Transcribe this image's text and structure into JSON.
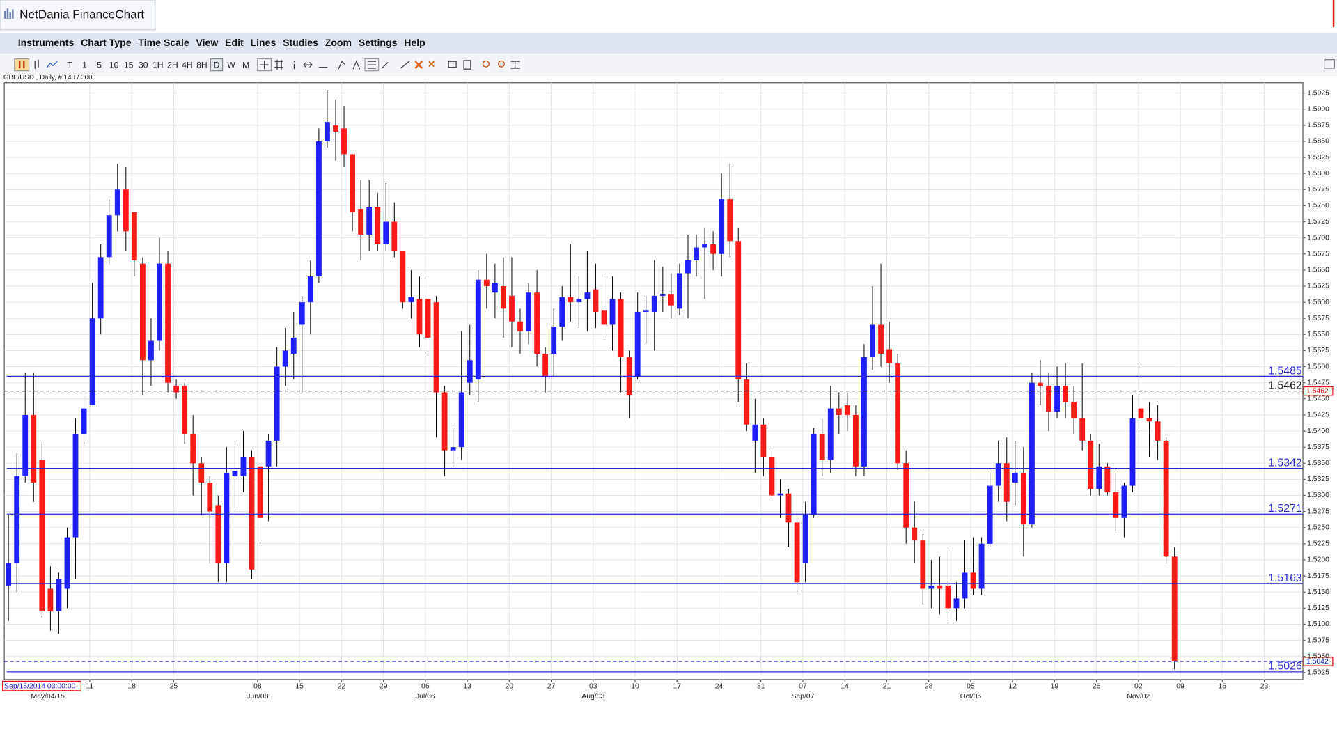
{
  "window_title": "NetDania FinanceChart",
  "menu": [
    "Instruments",
    "Chart Type",
    "Time Scale",
    "View",
    "Edit",
    "Lines",
    "Studies",
    "Zoom",
    "Settings",
    "Help"
  ],
  "toolbar": [
    "T",
    "1",
    "5",
    "10",
    "15",
    "30",
    "1H",
    "2H",
    "4H",
    "8H",
    "D",
    "W",
    "M"
  ],
  "chart_data": {
    "type": "candlestick",
    "title": "GBP/USD , Daily, # 140 / 300",
    "cursor_date": "Sep/15/2014 03:00:00",
    "up_color": "#1f1fff",
    "down_color": "#ff1a1a",
    "level_color": "#2727d8",
    "grid": true,
    "xlim": [
      -0.5,
      154.3
    ],
    "ylim": [
      1.5014,
      1.5941
    ],
    "open": [
      1.516,
      1.5195,
      1.533,
      1.5425,
      1.5355,
      1.5155,
      1.512,
      1.5155,
      1.5235,
      1.5395,
      1.544,
      1.5575,
      1.567,
      1.5735,
      1.5775,
      1.574,
      1.566,
      1.551,
      1.554,
      1.566,
      1.547,
      1.547,
      1.5395,
      1.535,
      1.532,
      1.5285,
      1.5195,
      1.533,
      1.533,
      1.536,
      1.5345,
      1.5345,
      1.5385,
      1.55,
      1.552,
      1.5565,
      1.56,
      1.564,
      1.585,
      1.5875,
      1.587,
      1.583,
      1.5745,
      1.5705,
      1.5748,
      1.569,
      1.5725,
      1.568,
      1.56,
      1.5605,
      1.5605,
      1.56,
      1.546,
      1.537,
      1.5375,
      1.5475,
      1.548,
      1.5635,
      1.5615,
      1.5625,
      1.561,
      1.557,
      1.5555,
      1.5615,
      1.552,
      1.552,
      1.5562,
      1.5608,
      1.56,
      1.5605,
      1.562,
      1.5588,
      1.5565,
      1.5605,
      1.5515,
      1.5485,
      1.5585,
      1.5585,
      1.561,
      1.5613,
      1.559,
      1.5645,
      1.5665,
      1.5685,
      1.569,
      1.5675,
      1.576,
      1.5695,
      1.548,
      1.5385,
      1.541,
      1.536,
      1.53,
      1.5303,
      1.5258,
      1.5195,
      1.527,
      1.5395,
      1.5355,
      1.5435,
      1.544,
      1.5425,
      1.5345,
      1.5515,
      1.5565,
      1.5527,
      1.5505,
      1.535,
      1.525,
      1.523,
      1.5155,
      1.516,
      1.516,
      1.5125,
      1.514,
      1.518,
      1.5155,
      1.5225,
      1.5315,
      1.535,
      1.532,
      1.5335,
      1.5255,
      1.5475,
      1.547,
      1.543,
      1.547,
      1.5445,
      1.542,
      1.5385,
      1.531,
      1.5345,
      1.5305,
      1.5265,
      1.5315,
      1.5435,
      1.542,
      1.5415,
      1.5385,
      1.5205
    ],
    "high": [
      1.527,
      1.5365,
      1.549,
      1.549,
      1.538,
      1.519,
      1.518,
      1.525,
      1.542,
      1.5455,
      1.563,
      1.569,
      1.576,
      1.5815,
      1.581,
      1.574,
      1.567,
      1.5575,
      1.57,
      1.568,
      1.548,
      1.5475,
      1.5425,
      1.536,
      1.533,
      1.53,
      1.5375,
      1.538,
      1.54,
      1.537,
      1.535,
      1.5395,
      1.553,
      1.556,
      1.5585,
      1.561,
      1.5665,
      1.587,
      1.593,
      1.5915,
      1.5905,
      1.583,
      1.579,
      1.579,
      1.577,
      1.5785,
      1.5755,
      1.568,
      1.565,
      1.564,
      1.564,
      1.561,
      1.547,
      1.5405,
      1.5555,
      1.5565,
      1.565,
      1.5675,
      1.566,
      1.567,
      1.567,
      1.559,
      1.563,
      1.565,
      1.553,
      1.559,
      1.5625,
      1.569,
      1.564,
      1.568,
      1.566,
      1.564,
      1.564,
      1.5615,
      1.5525,
      1.5615,
      1.561,
      1.5665,
      1.5655,
      1.5645,
      1.566,
      1.5705,
      1.5705,
      1.5715,
      1.571,
      1.58,
      1.5815,
      1.5715,
      1.5505,
      1.545,
      1.542,
      1.537,
      1.5325,
      1.531,
      1.5265,
      1.529,
      1.5405,
      1.542,
      1.547,
      1.546,
      1.546,
      1.544,
      1.5535,
      1.5625,
      1.566,
      1.557,
      1.552,
      1.537,
      1.529,
      1.524,
      1.52,
      1.5205,
      1.5215,
      1.5165,
      1.523,
      1.5235,
      1.5235,
      1.5335,
      1.5385,
      1.539,
      1.5385,
      1.5375,
      1.549,
      1.551,
      1.549,
      1.55,
      1.5505,
      1.547,
      1.5505,
      1.5395,
      1.538,
      1.535,
      1.5335,
      1.532,
      1.5455,
      1.55,
      1.5445,
      1.544,
      1.539,
      1.522
    ],
    "low": [
      1.5105,
      1.515,
      1.532,
      1.529,
      1.511,
      1.509,
      1.5085,
      1.5125,
      1.517,
      1.538,
      1.544,
      1.555,
      1.566,
      1.571,
      1.568,
      1.564,
      1.5455,
      1.547,
      1.5525,
      1.546,
      1.545,
      1.538,
      1.53,
      1.527,
      1.5195,
      1.5165,
      1.5165,
      1.528,
      1.5305,
      1.517,
      1.5225,
      1.526,
      1.5345,
      1.547,
      1.548,
      1.546,
      1.555,
      1.563,
      1.584,
      1.582,
      1.581,
      1.571,
      1.5665,
      1.568,
      1.568,
      1.568,
      1.567,
      1.559,
      1.5575,
      1.553,
      1.552,
      1.539,
      1.533,
      1.5345,
      1.5355,
      1.5455,
      1.5445,
      1.559,
      1.5575,
      1.5545,
      1.553,
      1.552,
      1.5535,
      1.55,
      1.546,
      1.5485,
      1.554,
      1.557,
      1.556,
      1.5555,
      1.556,
      1.5545,
      1.5525,
      1.546,
      1.542,
      1.548,
      1.5535,
      1.5525,
      1.5585,
      1.5575,
      1.558,
      1.5575,
      1.564,
      1.5605,
      1.565,
      1.564,
      1.567,
      1.5445,
      1.54,
      1.5335,
      1.533,
      1.5295,
      1.5265,
      1.522,
      1.515,
      1.5165,
      1.5265,
      1.533,
      1.5335,
      1.5395,
      1.54,
      1.533,
      1.533,
      1.5495,
      1.55,
      1.5475,
      1.534,
      1.5225,
      1.5195,
      1.513,
      1.5125,
      1.5115,
      1.5105,
      1.5105,
      1.5125,
      1.5145,
      1.5145,
      1.522,
      1.529,
      1.526,
      1.5285,
      1.5205,
      1.525,
      1.544,
      1.54,
      1.542,
      1.542,
      1.5395,
      1.537,
      1.53,
      1.53,
      1.53,
      1.5245,
      1.5235,
      1.5305,
      1.54,
      1.536,
      1.5355,
      1.5195,
      1.503
    ],
    "close": [
      1.5195,
      1.533,
      1.5425,
      1.532,
      1.512,
      1.512,
      1.517,
      1.5235,
      1.5395,
      1.5435,
      1.5575,
      1.567,
      1.5735,
      1.5775,
      1.571,
      1.5665,
      1.551,
      1.554,
      1.566,
      1.5475,
      1.546,
      1.5395,
      1.535,
      1.532,
      1.5275,
      1.5195,
      1.5335,
      1.5338,
      1.536,
      1.5185,
      1.5265,
      1.5385,
      1.55,
      1.5525,
      1.5545,
      1.56,
      1.564,
      1.585,
      1.588,
      1.5865,
      1.583,
      1.574,
      1.5705,
      1.5748,
      1.569,
      1.5725,
      1.568,
      1.56,
      1.5608,
      1.555,
      1.5545,
      1.546,
      1.537,
      1.5375,
      1.546,
      1.551,
      1.5635,
      1.5625,
      1.563,
      1.559,
      1.557,
      1.5555,
      1.5615,
      1.552,
      1.5485,
      1.5562,
      1.5608,
      1.56,
      1.5605,
      1.5615,
      1.5585,
      1.5565,
      1.5605,
      1.5515,
      1.5455,
      1.5585,
      1.5588,
      1.561,
      1.5613,
      1.5595,
      1.5645,
      1.5665,
      1.5685,
      1.569,
      1.5675,
      1.576,
      1.5695,
      1.548,
      1.541,
      1.541,
      1.536,
      1.53,
      1.5303,
      1.5258,
      1.5165,
      1.527,
      1.5395,
      1.5355,
      1.5435,
      1.5425,
      1.5425,
      1.5345,
      1.5515,
      1.5565,
      1.552,
      1.5505,
      1.535,
      1.525,
      1.523,
      1.5155,
      1.516,
      1.5155,
      1.5125,
      1.514,
      1.518,
      1.5155,
      1.5225,
      1.5315,
      1.535,
      1.529,
      1.5335,
      1.5255,
      1.5475,
      1.547,
      1.543,
      1.547,
      1.5445,
      1.542,
      1.5385,
      1.531,
      1.5345,
      1.5305,
      1.5265,
      1.5315,
      1.542,
      1.542,
      1.5415,
      1.5385,
      1.5205,
      1.5042
    ],
    "yticks": [
      1.5925,
      {
        "value": 1.59,
        "label": "1.5900"
      },
      1.5875,
      {
        "value": 1.585,
        "label": "1.5850"
      },
      1.5825,
      {
        "value": 1.58,
        "label": "1.5800"
      },
      1.5775,
      {
        "value": 1.575,
        "label": "1.5750"
      },
      1.5725,
      {
        "value": 1.57,
        "label": "1.5700"
      },
      1.5675,
      {
        "value": 1.565,
        "label": "1.5650"
      },
      1.5625,
      {
        "value": 1.56,
        "label": "1.5600"
      },
      1.5575,
      {
        "value": 1.555,
        "label": "1.5550"
      },
      1.5525,
      {
        "value": 1.55,
        "label": "1.5500"
      },
      1.5475,
      {
        "value": 1.545,
        "label": "1.5450"
      },
      1.5425,
      {
        "value": 1.54,
        "label": "1.5400"
      },
      1.5375,
      {
        "value": 1.535,
        "label": "1.5350"
      },
      1.5325,
      {
        "value": 1.53,
        "label": "1.5300"
      },
      1.5275,
      {
        "value": 1.525,
        "label": "1.5250"
      },
      1.5225,
      {
        "value": 1.52,
        "label": "1.5200"
      },
      1.5175,
      {
        "value": 1.515,
        "label": "1.5150"
      },
      1.5125,
      {
        "value": 1.51,
        "label": "1.5100"
      },
      1.5075,
      {
        "value": 1.505,
        "label": "1.5050"
      },
      1.5025
    ],
    "xticks": [
      {
        "value": 10,
        "label": "11"
      },
      {
        "value": 15,
        "label": "18"
      },
      {
        "value": 20,
        "label": "25"
      },
      {
        "value": 30,
        "label": "08"
      },
      {
        "value": 35,
        "label": "15"
      },
      {
        "value": 40,
        "label": "22"
      },
      {
        "value": 45,
        "label": "29"
      },
      {
        "value": 50,
        "label": "06"
      },
      {
        "value": 55,
        "label": "13"
      },
      {
        "value": 60,
        "label": "20"
      },
      {
        "value": 65,
        "label": "27"
      },
      {
        "value": 70,
        "label": "03"
      },
      {
        "value": 75,
        "label": "10"
      },
      {
        "value": 80,
        "label": "17"
      },
      {
        "value": 85,
        "label": "24"
      },
      {
        "value": 90,
        "label": "31"
      },
      {
        "value": 95,
        "label": "07"
      },
      {
        "value": 100,
        "label": "14"
      },
      {
        "value": 105,
        "label": "21"
      },
      {
        "value": 110,
        "label": "28"
      },
      {
        "value": 115,
        "label": "05"
      },
      {
        "value": 120,
        "label": "12"
      },
      {
        "value": 125,
        "label": "19"
      },
      {
        "value": 130,
        "label": "26"
      },
      {
        "value": 135,
        "label": "02"
      },
      {
        "value": 140,
        "label": "09"
      },
      {
        "value": 145,
        "label": "16"
      },
      {
        "value": 150,
        "label": "23"
      }
    ],
    "month_labels": [
      {
        "value": 5,
        "label": "May/04/15"
      },
      {
        "value": 30,
        "label": "Jun/08"
      },
      {
        "value": 50,
        "label": "Jul/06"
      },
      {
        "value": 70,
        "label": "Aug/03"
      },
      {
        "value": 95,
        "label": "Sep/07"
      },
      {
        "value": 115,
        "label": "Oct/05"
      },
      {
        "value": 135,
        "label": "Nov/02"
      }
    ],
    "levels": [
      1.5485,
      1.5342,
      1.5271,
      1.5163,
      1.5026
    ],
    "reference_price": 1.5462,
    "last_price": 1.5042
  }
}
